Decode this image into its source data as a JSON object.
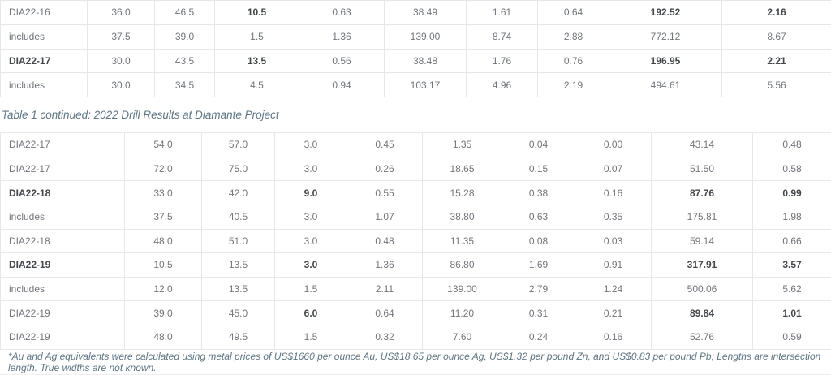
{
  "colors": {
    "background": "#ffffff",
    "table_text": "#72757b",
    "table_text_bold": "#43464a",
    "caption_text": "#5e7584",
    "border": "#e7e7e7"
  },
  "caption": {
    "text": "Table 1 continued: 2022 Drill Results at Diamante Project"
  },
  "footnote": {
    "text": "*Au and Ag equivalents were calculated using metal prices of US$1660 per ounce Au, US$18.65 per ounce Ag, US$1.32 per pound Zn, and US$0.83 per pound Pb; Lengths are intersection length.  True widths are not known."
  },
  "table1": {
    "rows": [
      {
        "cells": [
          "DIA22-16",
          "36.0",
          "46.5",
          "10.5",
          "0.63",
          "38.49",
          "1.61",
          "0.64",
          "192.52",
          "2.16"
        ],
        "bold": [
          3,
          8,
          9
        ]
      },
      {
        "cells": [
          "includes",
          "37.5",
          "39.0",
          "1.5",
          "1.36",
          "139.00",
          "8.74",
          "2.88",
          "772.12",
          "8.67"
        ],
        "bold": []
      },
      {
        "cells": [
          "DIA22-17",
          "30.0",
          "43.5",
          "13.5",
          "0.56",
          "38.48",
          "1.76",
          "0.76",
          "196.95",
          "2.21"
        ],
        "bold": [
          0,
          3,
          8,
          9
        ]
      },
      {
        "cells": [
          "includes",
          "30.0",
          "34.5",
          "4.5",
          "0.94",
          "103.17",
          "4.96",
          "2.19",
          "494.61",
          "5.56"
        ],
        "bold": []
      }
    ]
  },
  "table2": {
    "rows": [
      {
        "cells": [
          "DIA22-17",
          "54.0",
          "57.0",
          "3.0",
          "0.45",
          "1.35",
          "0.04",
          "0.00",
          "43.14",
          "0.48"
        ],
        "bold": []
      },
      {
        "cells": [
          "DIA22-17",
          "72.0",
          "75.0",
          "3.0",
          "0.26",
          "18.65",
          "0.15",
          "0.07",
          "51.50",
          "0.58"
        ],
        "bold": []
      },
      {
        "cells": [
          "DIA22-18",
          "33.0",
          "42.0",
          "9.0",
          "0.55",
          "15.28",
          "0.38",
          "0.16",
          "87.76",
          "0.99"
        ],
        "bold": [
          0,
          3,
          8,
          9
        ]
      },
      {
        "cells": [
          "includes",
          "37.5",
          "40.5",
          "3.0",
          "1.07",
          "38.80",
          "0.63",
          "0.35",
          "175.81",
          "1.98"
        ],
        "bold": []
      },
      {
        "cells": [
          "DIA22-18",
          "48.0",
          "51.0",
          "3.0",
          "0.48",
          "11.35",
          "0.08",
          "0.03",
          "59.14",
          "0.66"
        ],
        "bold": []
      },
      {
        "cells": [
          "DIA22-19",
          "10.5",
          "13.5",
          "3.0",
          "1.36",
          "86.80",
          "1.69",
          "0.91",
          "317.91",
          "3.57"
        ],
        "bold": [
          0,
          3,
          8,
          9
        ]
      },
      {
        "cells": [
          "includes",
          "12.0",
          "13.5",
          "1.5",
          "2.11",
          "139.00",
          "2.79",
          "1.24",
          "500.06",
          "5.62"
        ],
        "bold": []
      },
      {
        "cells": [
          "DIA22-19",
          "39.0",
          "45.0",
          "6.0",
          "0.64",
          "11.20",
          "0.31",
          "0.21",
          "89.84",
          "1.01"
        ],
        "bold": [
          3,
          8,
          9
        ]
      },
      {
        "cells": [
          "DIA22-19",
          "48.0",
          "49.5",
          "1.5",
          "0.32",
          "7.60",
          "0.24",
          "0.16",
          "52.76",
          "0.59"
        ],
        "bold": []
      }
    ]
  }
}
